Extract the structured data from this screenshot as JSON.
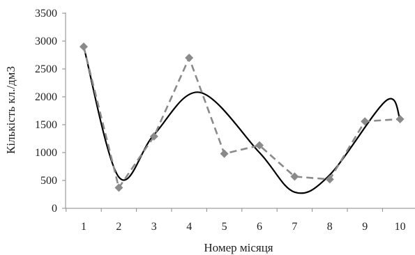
{
  "chart_data": {
    "type": "line",
    "title": "",
    "xlabel": "Номер місяця",
    "ylabel": "Кількість кл./дм3",
    "ylim": [
      0,
      3500
    ],
    "yticks": [
      0,
      500,
      1000,
      1500,
      2000,
      2500,
      3000,
      3500
    ],
    "x": [
      1,
      2,
      3,
      4,
      5,
      6,
      7,
      8,
      9,
      10
    ],
    "xtick_labels": [
      "1",
      "2",
      "3",
      "4",
      "5",
      "6",
      "7",
      "8",
      "9",
      "10"
    ],
    "grid": false,
    "legend": "none",
    "series": [
      {
        "style": "dashed-with-diamond-markers",
        "color": "#8a8a8a",
        "values": [
          2900,
          370,
          1290,
          2700,
          980,
          1130,
          570,
          520,
          1560,
          1600
        ]
      },
      {
        "style": "solid-smooth",
        "color": "#000000",
        "points": [
          [
            1,
            2900
          ],
          [
            2,
            560
          ],
          [
            3,
            1320
          ],
          [
            4.3,
            2080
          ],
          [
            6,
            1000
          ],
          [
            7,
            290
          ],
          [
            8,
            600
          ],
          [
            9.6,
            1930
          ],
          [
            10,
            1600
          ]
        ]
      }
    ]
  }
}
